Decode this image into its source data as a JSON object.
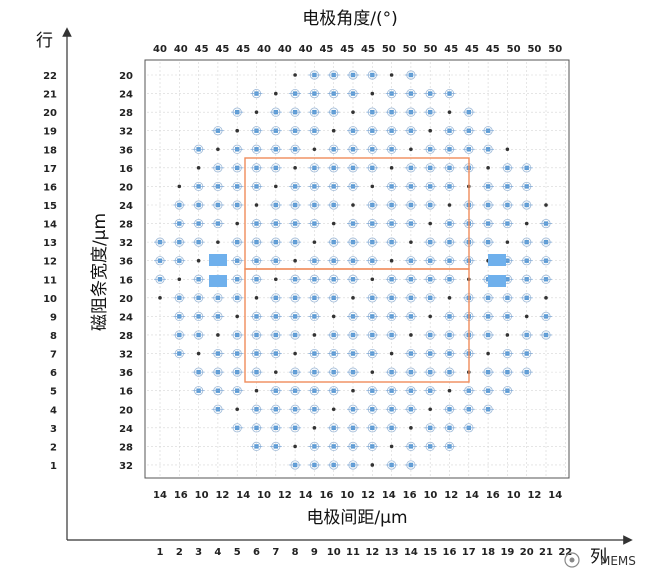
{
  "top_title": "电极角度/(°)",
  "left_title": "磁阻条宽度/μm",
  "bottom_title": "电极间距/μm",
  "outer_axis_y_label": "行",
  "outer_axis_x_label": "列",
  "top_angle_ticks": [
    "40",
    "40",
    "45",
    "45",
    "45",
    "40",
    "40",
    "40",
    "45",
    "45",
    "45",
    "50",
    "50",
    "50",
    "45",
    "45",
    "45",
    "50",
    "50",
    "50"
  ],
  "row_numbers": [
    "22",
    "21",
    "20",
    "19",
    "18",
    "17",
    "16",
    "15",
    "14",
    "13",
    "12",
    "11",
    "10",
    "9",
    "8",
    "7",
    "6",
    "5",
    "4",
    "3",
    "2",
    "1"
  ],
  "width_ticks": [
    "20",
    "24",
    "28",
    "32",
    "36",
    "16",
    "20",
    "24",
    "28",
    "32",
    "36",
    "16",
    "20",
    "24",
    "28",
    "32",
    "36",
    "16",
    "20",
    "24",
    "28",
    "32"
  ],
  "spacing_ticks": [
    "14",
    "16",
    "10",
    "12",
    "14",
    "10",
    "12",
    "14",
    "16",
    "10",
    "12",
    "14",
    "16",
    "10",
    "12",
    "14",
    "16",
    "10",
    "12",
    "14"
  ],
  "column_numbers": [
    "1",
    "2",
    "3",
    "4",
    "5",
    "6",
    "7",
    "8",
    "9",
    "10",
    "11",
    "12",
    "13",
    "14",
    "15",
    "16",
    "17",
    "18",
    "19",
    "20",
    "21",
    "22"
  ],
  "watermark_text": "MEMS",
  "colors": {
    "marker_blue": "#5b9bd5",
    "highlight_box": "#f08c5a",
    "pad_blue": "#6fb0ec",
    "axis": "#333333"
  }
}
